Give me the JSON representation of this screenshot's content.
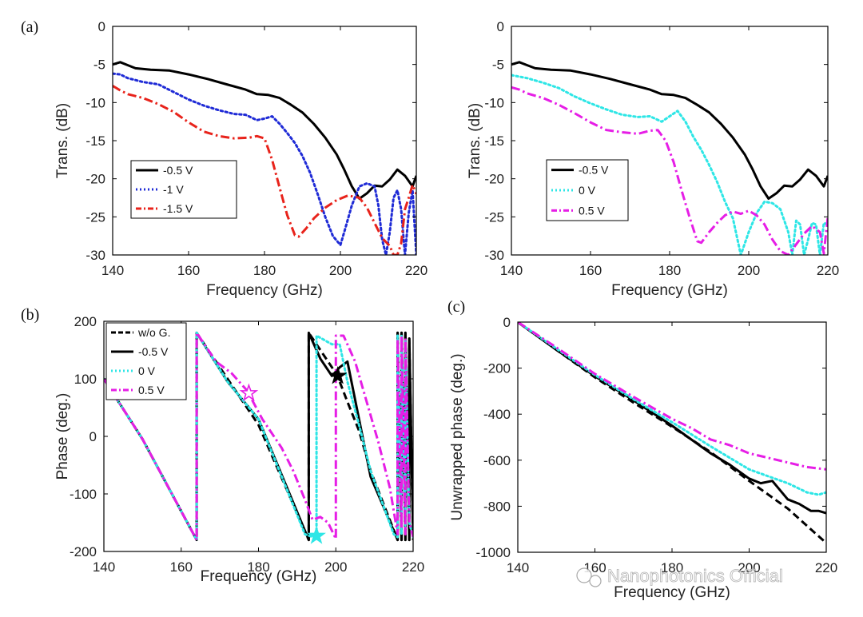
{
  "watermark": "Nanophotonics Official",
  "colors": {
    "black": "#000000",
    "blue": "#1f2bd6",
    "red": "#e8231b",
    "cyan": "#2ee6e6",
    "magenta": "#e61ee6"
  },
  "chart_data": [
    {
      "panel": "(a)",
      "type": "line",
      "xlabel": "Frequency (GHz)",
      "ylabel": "Trans. (dB)",
      "xlim": [
        140,
        220
      ],
      "ylim": [
        -30,
        0
      ],
      "xticks": [
        "140",
        "160",
        "180",
        "200",
        "220"
      ],
      "yticks": [
        "0",
        "-5",
        "-10",
        "-15",
        "-20",
        "-25",
        "-30"
      ],
      "legend_position": "bottom-left",
      "series": [
        {
          "name": "-0.5 V",
          "style": "solid",
          "color": "#000000",
          "x": [
            140,
            142,
            144,
            146,
            150,
            155,
            160,
            165,
            170,
            175,
            178,
            181,
            184,
            187,
            190,
            193,
            196,
            199,
            201,
            203,
            205,
            207,
            209,
            211,
            213,
            215,
            217,
            219,
            220
          ],
          "y": [
            -5.0,
            -4.7,
            -5.1,
            -5.5,
            -5.7,
            -5.8,
            -6.3,
            -6.9,
            -7.6,
            -8.3,
            -8.9,
            -9.0,
            -9.4,
            -10.3,
            -11.3,
            -12.8,
            -14.6,
            -16.8,
            -18.8,
            -21.0,
            -22.6,
            -21.9,
            -20.9,
            -21.0,
            -20.1,
            -18.8,
            -19.6,
            -21.0,
            -19.6
          ]
        },
        {
          "name": "-1 V",
          "style": "dotted",
          "color": "#1f2bd6",
          "x": [
            140,
            142,
            144,
            148,
            152,
            156,
            160,
            164,
            168,
            172,
            175,
            178,
            180,
            182,
            184,
            186,
            188,
            190,
            192,
            194,
            196,
            198,
            200,
            201,
            203,
            205,
            207,
            209,
            210,
            211,
            212,
            213,
            214,
            215,
            216,
            217,
            218,
            219,
            220
          ],
          "y": [
            -6.2,
            -6.3,
            -6.8,
            -7.3,
            -7.6,
            -8.6,
            -9.6,
            -10.4,
            -11.0,
            -11.5,
            -11.6,
            -12.3,
            -12.1,
            -11.8,
            -12.8,
            -14.0,
            -15.3,
            -17.0,
            -19.2,
            -22.0,
            -25.0,
            -27.5,
            -28.7,
            -27.0,
            -23.5,
            -21.0,
            -20.6,
            -21.0,
            -23.5,
            -28.0,
            -30.0,
            -27.0,
            -22.5,
            -21.5,
            -24.0,
            -30.0,
            -24.5,
            -21.5,
            -30.0
          ]
        },
        {
          "name": "-1.5 V",
          "style": "dashdot",
          "color": "#e8231b",
          "x": [
            140,
            142,
            144,
            148,
            152,
            156,
            160,
            164,
            168,
            172,
            176,
            178,
            180,
            182,
            184,
            186,
            188,
            189,
            191,
            193,
            196,
            199,
            202,
            205,
            207,
            209,
            211,
            213,
            214,
            215,
            216,
            217,
            218,
            219,
            220
          ],
          "y": [
            -7.8,
            -8.4,
            -8.9,
            -9.4,
            -10.2,
            -11.2,
            -12.6,
            -13.8,
            -14.4,
            -14.7,
            -14.6,
            -14.4,
            -14.7,
            -17.5,
            -21.2,
            -24.8,
            -27.4,
            -27.6,
            -26.5,
            -25.2,
            -23.8,
            -22.8,
            -22.2,
            -22.5,
            -23.8,
            -25.8,
            -27.8,
            -28.8,
            -30.0,
            -30.0,
            -28.5,
            -24.0,
            -22.5,
            -20.8,
            -22.0
          ]
        }
      ]
    },
    {
      "panel": "",
      "type": "line",
      "xlabel": "Frequency (GHz)",
      "ylabel": "Trans. (dB)",
      "xlim": [
        140,
        220
      ],
      "ylim": [
        -30,
        0
      ],
      "xticks": [
        "140",
        "160",
        "180",
        "200",
        "220"
      ],
      "yticks": [
        "0",
        "-5",
        "-10",
        "-15",
        "-20",
        "-25",
        "-30"
      ],
      "legend_position": "bottom-left",
      "series": [
        {
          "name": "-0.5 V",
          "style": "solid",
          "color": "#000000",
          "x": [
            140,
            142,
            144,
            146,
            150,
            155,
            160,
            165,
            170,
            175,
            178,
            181,
            184,
            187,
            190,
            193,
            196,
            199,
            201,
            203,
            205,
            207,
            209,
            211,
            213,
            215,
            217,
            219,
            220
          ],
          "y": [
            -5.0,
            -4.7,
            -5.1,
            -5.5,
            -5.7,
            -5.8,
            -6.3,
            -6.9,
            -7.6,
            -8.3,
            -8.9,
            -9.0,
            -9.4,
            -10.3,
            -11.3,
            -12.8,
            -14.6,
            -16.8,
            -18.8,
            -21.0,
            -22.6,
            -21.9,
            -20.9,
            -21.0,
            -20.1,
            -18.8,
            -19.6,
            -21.0,
            -19.6
          ]
        },
        {
          "name": "0 V",
          "style": "dotted",
          "color": "#2ee6e6",
          "x": [
            140,
            142,
            144,
            148,
            152,
            156,
            160,
            164,
            168,
            172,
            175,
            178,
            180,
            182,
            184,
            186,
            188,
            190,
            192,
            194,
            196,
            198,
            200,
            202,
            204,
            206,
            208,
            210,
            211,
            212,
            213,
            214,
            215,
            216,
            217,
            218,
            219,
            220
          ],
          "y": [
            -6.4,
            -6.6,
            -6.8,
            -7.4,
            -8.1,
            -9.2,
            -10.1,
            -10.9,
            -11.6,
            -11.9,
            -11.8,
            -12.5,
            -11.8,
            -11.1,
            -12.5,
            -14.5,
            -16.2,
            -18.2,
            -20.4,
            -23.0,
            -25.2,
            -30.0,
            -27.0,
            -24.5,
            -23.0,
            -23.2,
            -24.0,
            -27.0,
            -30.0,
            -25.5,
            -26.0,
            -30.0,
            -28.0,
            -25.8,
            -26.0,
            -30.0,
            -25.8,
            -26.0
          ]
        },
        {
          "name": "0.5 V",
          "style": "dashdot",
          "color": "#e61ee6",
          "x": [
            140,
            142,
            144,
            148,
            152,
            156,
            160,
            164,
            168,
            172,
            175,
            177,
            179,
            181,
            183,
            185,
            187,
            188,
            190,
            192,
            194,
            196,
            198,
            200,
            202,
            204,
            206,
            208,
            210,
            212,
            214,
            216,
            218,
            219,
            220
          ],
          "y": [
            -8.0,
            -8.3,
            -8.8,
            -9.4,
            -10.3,
            -11.4,
            -12.6,
            -13.6,
            -13.9,
            -14.1,
            -13.7,
            -13.6,
            -15.0,
            -17.8,
            -21.5,
            -25.0,
            -28.2,
            -28.4,
            -27.0,
            -25.8,
            -24.8,
            -24.3,
            -24.6,
            -24.2,
            -24.8,
            -26.0,
            -28.0,
            -29.5,
            -30.0,
            -28.6,
            -27.2,
            -26.2,
            -27.0,
            -29.8,
            -25.0
          ]
        }
      ]
    },
    {
      "panel": "(b)",
      "type": "line",
      "xlabel": "Frequency (GHz)",
      "ylabel": "Phase (deg.)",
      "xlim": [
        140,
        220
      ],
      "ylim": [
        -200,
        200
      ],
      "xticks": [
        "140",
        "160",
        "180",
        "200",
        "220"
      ],
      "yticks": [
        "200",
        "100",
        "0",
        "-100",
        "-200"
      ],
      "legend_position": "top-left",
      "series": [
        {
          "name": "w/o G.",
          "style": "dashed",
          "color": "#000000",
          "x": [
            140,
            150,
            164,
            164,
            173,
            180,
            193,
            193,
            196,
            199,
            201,
            203,
            206,
            209,
            216,
            216,
            217,
            217,
            218,
            218,
            219,
            219,
            220
          ],
          "y": [
            100,
            -5,
            -180,
            180,
            90,
            20,
            -180,
            180,
            150,
            120,
            95,
            60,
            10,
            -60,
            -180,
            180,
            -180,
            180,
            -180,
            180,
            -180,
            170,
            -180
          ]
        },
        {
          "name": "-0.5 V",
          "style": "solid",
          "color": "#000000",
          "x": [
            140,
            150,
            164,
            164,
            172,
            180,
            193,
            193,
            196,
            199,
            201,
            203,
            206,
            209,
            216,
            216,
            217,
            217,
            218,
            218,
            219,
            219,
            220
          ],
          "y": [
            100,
            -5,
            -180,
            180,
            95,
            30,
            -180,
            180,
            135,
            105,
            120,
            130,
            30,
            -70,
            -180,
            180,
            -180,
            180,
            -180,
            180,
            -180,
            170,
            -170
          ]
        },
        {
          "name": "0 V",
          "style": "dotted",
          "color": "#2ee6e6",
          "x": [
            140,
            150,
            164,
            164,
            172,
            180,
            192,
            194,
            195,
            195,
            199,
            201,
            203,
            206,
            209,
            215,
            216,
            216,
            217,
            217,
            218,
            218,
            219,
            220
          ],
          "y": [
            100,
            -5,
            -180,
            180,
            95,
            30,
            -170,
            -175,
            -175,
            175,
            160,
            160,
            95,
            20,
            -60,
            -170,
            -175,
            175,
            -170,
            175,
            -160,
            170,
            -150,
            -175
          ]
        },
        {
          "name": "0.5 V",
          "style": "dashdot",
          "color": "#e61ee6",
          "x": [
            140,
            150,
            164,
            164,
            169,
            173,
            177,
            181,
            186,
            189,
            192,
            194,
            196,
            198,
            200,
            200,
            202,
            205,
            208,
            211,
            214,
            216,
            216,
            217,
            217,
            218,
            218,
            219,
            220
          ],
          "y": [
            100,
            -5,
            -180,
            180,
            130,
            110,
            80,
            30,
            -20,
            -60,
            -110,
            -145,
            -140,
            -150,
            -178,
            175,
            175,
            130,
            60,
            -10,
            -90,
            -170,
            170,
            -160,
            175,
            -170,
            170,
            -150,
            -175
          ]
        }
      ],
      "markers": [
        {
          "x": 177.5,
          "y": 75,
          "color": "#e61ee6",
          "filled": false
        },
        {
          "x": 195,
          "y": -173,
          "color": "#2ee6e6",
          "filled": true
        },
        {
          "x": 200.5,
          "y": 105,
          "color": "#000000",
          "filled": true
        }
      ]
    },
    {
      "panel": "(c)",
      "type": "line",
      "xlabel": "Frequency (GHz)",
      "ylabel": "Unwrapped phase (deg.)",
      "xlim": [
        140,
        220
      ],
      "ylim": [
        -1000,
        0
      ],
      "xticks": [
        "140",
        "160",
        "180",
        "200",
        "220"
      ],
      "yticks": [
        "0",
        "-200",
        "-400",
        "-600",
        "-800",
        "-1000"
      ],
      "legend_position": "none",
      "series": [
        {
          "name": "w/o G.",
          "style": "dashed",
          "color": "#000000",
          "x": [
            140,
            150,
            160,
            170,
            180,
            190,
            200,
            210,
            220
          ],
          "y": [
            0,
            -120,
            -240,
            -350,
            -455,
            -565,
            -690,
            -810,
            -960
          ]
        },
        {
          "name": "-0.5 V",
          "style": "solid",
          "color": "#000000",
          "x": [
            140,
            150,
            160,
            170,
            180,
            190,
            195,
            200,
            203,
            206,
            210,
            213,
            216,
            218,
            220
          ],
          "y": [
            0,
            -120,
            -235,
            -340,
            -450,
            -570,
            -620,
            -680,
            -700,
            -690,
            -770,
            -790,
            -820,
            -820,
            -830
          ]
        },
        {
          "name": "0 V",
          "style": "dotted",
          "color": "#2ee6e6",
          "x": [
            140,
            150,
            160,
            170,
            180,
            190,
            195,
            200,
            205,
            210,
            215,
            218,
            220
          ],
          "y": [
            0,
            -115,
            -230,
            -335,
            -435,
            -540,
            -590,
            -640,
            -670,
            -700,
            -740,
            -750,
            -740
          ]
        },
        {
          "name": "0.5 V",
          "style": "dashdot",
          "color": "#e61ee6",
          "x": [
            140,
            150,
            160,
            170,
            180,
            185,
            190,
            195,
            200,
            205,
            210,
            215,
            220
          ],
          "y": [
            0,
            -110,
            -225,
            -325,
            -420,
            -460,
            -510,
            -535,
            -570,
            -590,
            -610,
            -630,
            -640
          ]
        }
      ]
    }
  ]
}
